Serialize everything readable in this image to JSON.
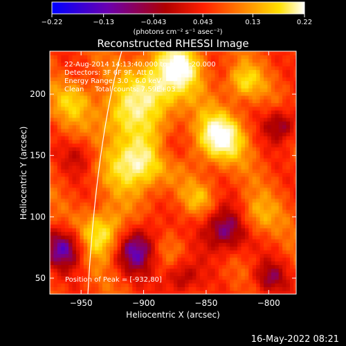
{
  "chart_data": {
    "type": "heatmap",
    "title": "Reconstructed RHESSI Image",
    "xlabel": "Heliocentric X (arcsec)",
    "ylabel": "Heliocentric Y (arcsec)",
    "xlim": [
      -975,
      -778
    ],
    "ylim": [
      37,
      235
    ],
    "x_ticks": [
      -950,
      -900,
      -850,
      -800
    ],
    "y_ticks": [
      50,
      100,
      150,
      200
    ],
    "x_tick_labels": [
      "−950",
      "−900",
      "−850",
      "−800"
    ],
    "y_tick_labels": [
      "50",
      "100",
      "150",
      "200"
    ],
    "colorbar": {
      "min": -0.22,
      "max": 0.22,
      "tick_values": [
        -0.22,
        -0.13,
        -0.043,
        0.043,
        0.13,
        0.22
      ],
      "tick_labels": [
        "−0.22",
        "−0.13",
        "−0.043",
        "0.043",
        "0.13",
        "0.22"
      ],
      "unit_label": "(photons cm⁻² s⁻¹ asec⁻²)",
      "colormap": "blue-purple-red-orange-yellow-white"
    },
    "annotations": {
      "time": "22-Aug-2014 14:13:40.000 to 14:15:20.000",
      "detectors": "Detectors: 3F 6F 9F, Att 0",
      "energy": "Energy Range: 3.0 - 6.0 keV",
      "clean": "Clean     Total counts: 7.59E+03",
      "peak": "Position of Peak = [-932,80]"
    },
    "peak": {
      "x": -932,
      "y": 80
    },
    "limb": true,
    "grid": false,
    "colors": {
      "background": "#000000",
      "text": "#ffffff",
      "colormap_stops": [
        "#0000ff",
        "#6a00b0",
        "#b00000",
        "#ff2000",
        "#ff8000",
        "#ffe000",
        "#ffffff"
      ]
    }
  },
  "footer": {
    "timestamp": "16-May-2022 08:21"
  }
}
